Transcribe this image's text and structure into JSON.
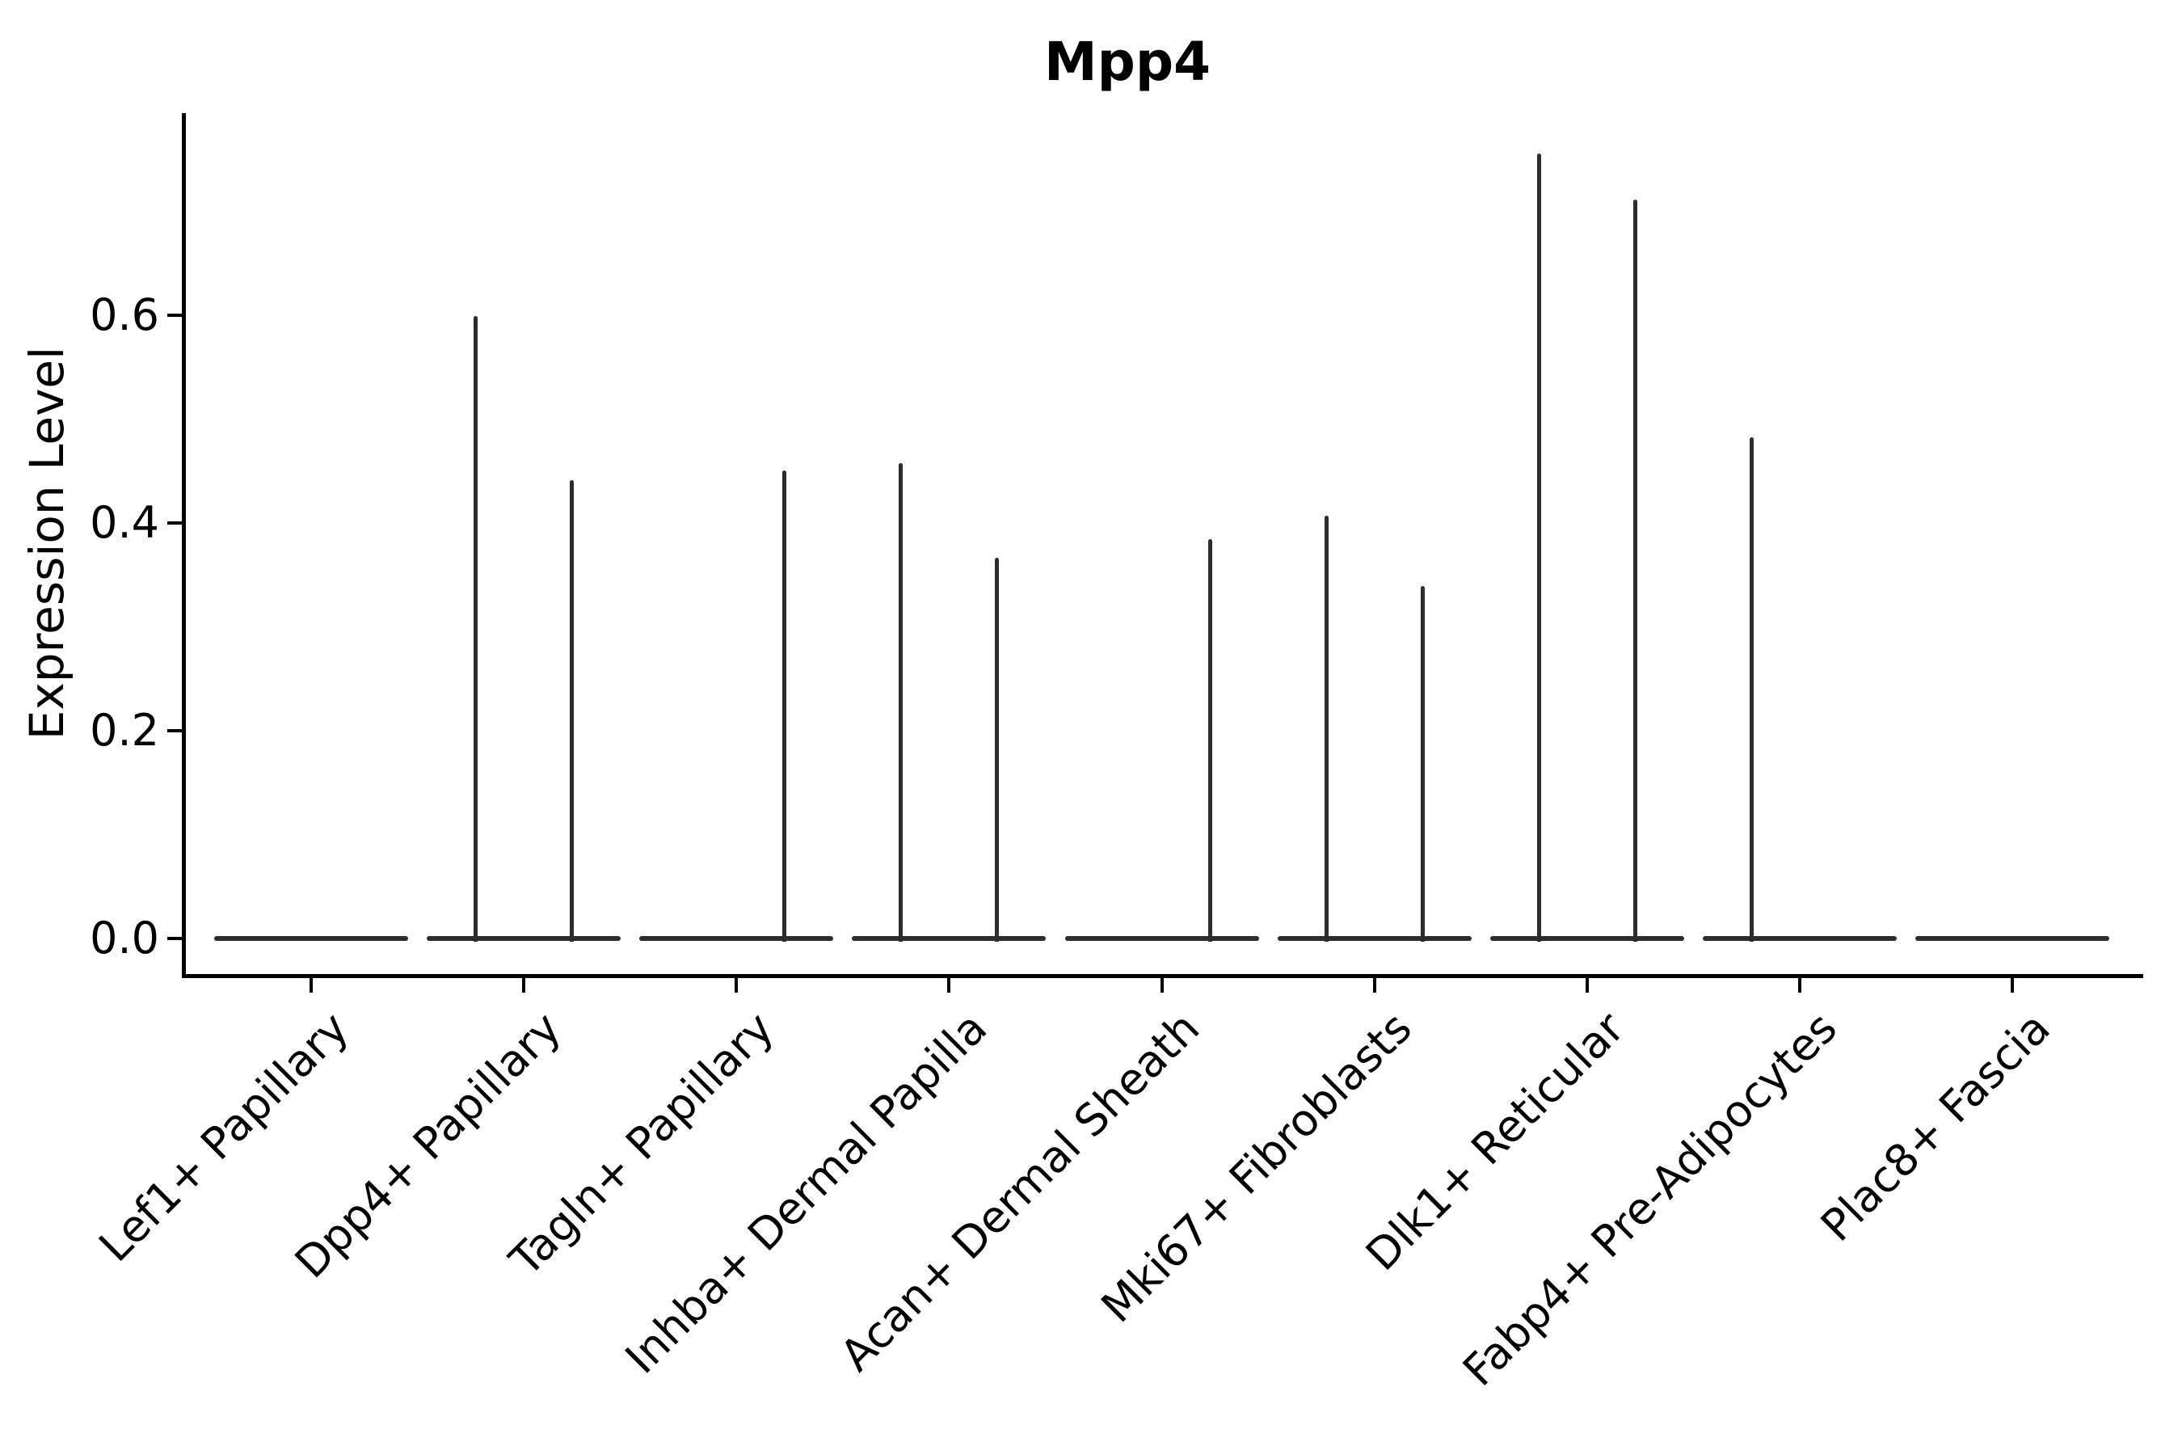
{
  "figure": {
    "title": "Mpp4",
    "y_axis_label": "Expression Level"
  },
  "chart_data": {
    "type": "violin",
    "title": "Mpp4",
    "xlabel": "",
    "ylabel": "Expression Level",
    "categories": [
      "Lef1+ Papillary",
      "Dpp4+ Papillary",
      "Tagln+ Papillary",
      "Inhba+ Dermal Papilla",
      "Acan+ Dermal Sheath",
      "Mki67+ Fibroblasts",
      "Dlk1+ Reticular",
      "Fabp4+ Pre-Adipocytes",
      "Plac8+ Fascia"
    ],
    "series": [
      {
        "name": "left violin of each category pair",
        "max_values": [
          0,
          0.599,
          0,
          0.457,
          0,
          0.407,
          0.755,
          0.482,
          0
        ]
      },
      {
        "name": "right violin of each category pair",
        "max_values": [
          0,
          0.441,
          0.45,
          0.366,
          0.384,
          0.339,
          0.711,
          0,
          0
        ]
      }
    ],
    "yticks": [
      0.0,
      0.2,
      0.4,
      0.6
    ],
    "ytick_labels": [
      "0.0",
      "0.2",
      "0.4",
      "0.6"
    ],
    "ylim": [
      -0.034,
      0.794
    ],
    "grid": false,
    "legend_position": "none",
    "violin_color": "#2d2d2d",
    "description": "Violin plot of Mpp4 expression; each category holds two side-by-side violins whose distributions collapse to a flat base at 0 with a thin spike rising to each group's maximum expression value."
  },
  "colors": {
    "background": "#ffffff",
    "axis": "#000000",
    "text": "#000000",
    "violin": "#2d2d2d"
  }
}
